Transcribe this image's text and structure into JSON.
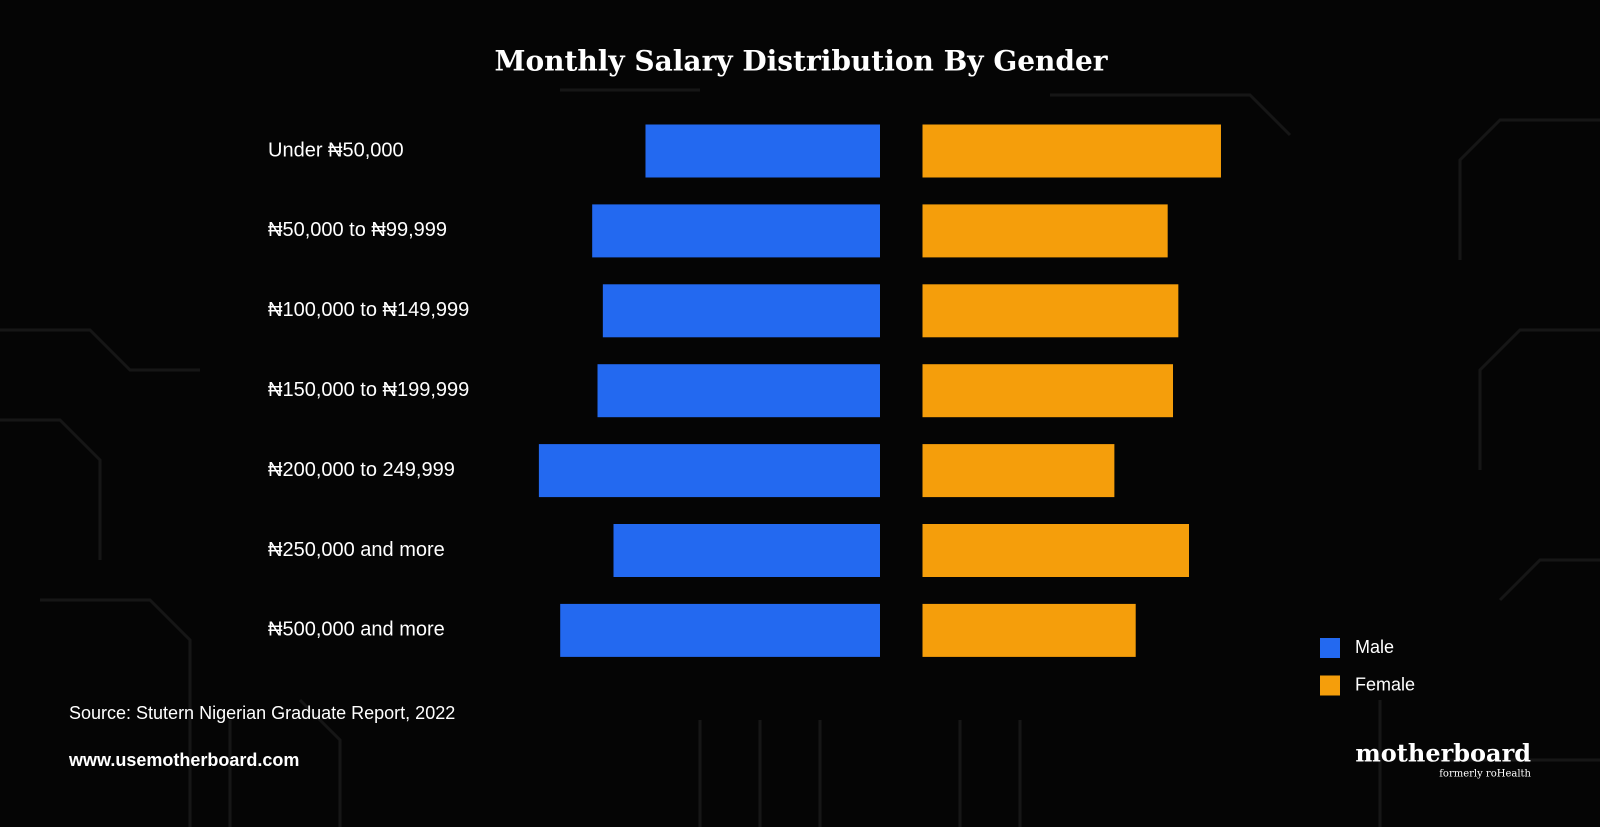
{
  "chart_data": {
    "type": "butterfly",
    "title": "Monthly Salary Distribution By Gender",
    "categories": [
      "Under ₦50,000",
      "₦50,000 to ₦99,999",
      "₦100,000 to ₦149,999",
      "₦150,000 to ₦199,999",
      "₦200,000 to 249,999",
      "₦250,000 and more",
      "₦500,000 and more"
    ],
    "series": [
      {
        "name": "Male",
        "color": "#2369f0",
        "values": [
          44,
          54,
          52,
          53,
          64,
          50,
          60
        ]
      },
      {
        "name": "Female",
        "color": "#f59e0b",
        "values": [
          56,
          46,
          48,
          47,
          36,
          50,
          40
        ]
      }
    ],
    "legend": "bottom-right"
  },
  "footer": {
    "source": "Source: Stutern Nigerian Graduate Report, 2022",
    "website": "www.usemotherboard.com",
    "brand": "motherboard",
    "brand_tagline": "formerly roHealth"
  }
}
